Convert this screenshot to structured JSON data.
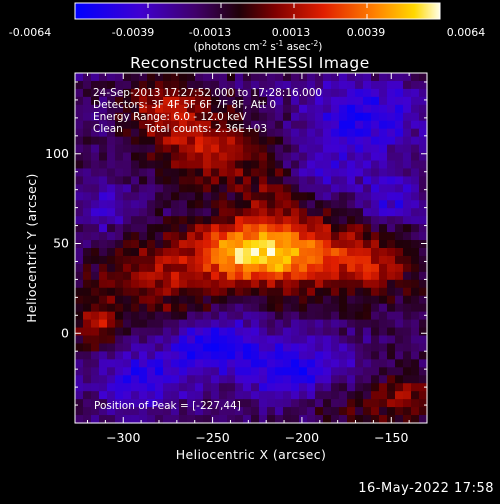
{
  "colorbar": {
    "ticks": [
      "-0.0064",
      "-0.0039",
      "-0.0013",
      "0.0013",
      "0.0039",
      "0.0064"
    ],
    "unit_label": "(photons cm",
    "unit_exp1": "-2",
    "unit_mid": " s",
    "unit_exp2": "-1",
    "unit_mid2": " asec",
    "unit_exp3": "-2",
    "unit_close": ")"
  },
  "title": "Reconstructed RHESSI Image",
  "info": {
    "line1": "24-Sep-2013 17:27:52.000 to 17:28:16.000",
    "line2": "Detectors: 3F 4F 5F 6F 7F 8F, Att 0",
    "line3": "Energy Range: 6.0 - 12.0 keV",
    "line4_a": "Clean",
    "line4_b": "Total counts: 2.36E+03"
  },
  "peak_label": "Position of Peak = [-227,44]",
  "footer": "16-May-2022 17:58",
  "chart_data": {
    "type": "heatmap",
    "title": "Reconstructed RHESSI Image",
    "xlabel": "Heliocentric X (arcsec)",
    "ylabel": "Heliocentric Y (arcsec)",
    "xlim": [
      -327,
      -130
    ],
    "ylim": [
      -50,
      145
    ],
    "xticks": [
      -300,
      -250,
      -200,
      -150
    ],
    "yticks": [
      0,
      50,
      100
    ],
    "xtick_labels": [
      "−300",
      "−250",
      "−200",
      "−150"
    ],
    "ytick_labels": [
      "0",
      "50",
      "100"
    ],
    "colorscale_range": [
      -0.0064,
      0.0064
    ],
    "colormap": [
      "#0000ff",
      "#5000c0",
      "#300040",
      "#000000",
      "#800000",
      "#e02000",
      "#ff7000",
      "#ffd000",
      "#ffffe0"
    ],
    "peak": {
      "x": -227,
      "y": 44
    },
    "sources": [
      {
        "x": -232,
        "y": 45,
        "amp": 0.0064,
        "sx": 22,
        "sy": 13
      },
      {
        "x": -198,
        "y": 44,
        "amp": 0.0038,
        "sx": 22,
        "sy": 14
      },
      {
        "x": -160,
        "y": 38,
        "amp": 0.003,
        "sx": 18,
        "sy": 14
      },
      {
        "x": -285,
        "y": 32,
        "amp": 0.003,
        "sx": 22,
        "sy": 15
      },
      {
        "x": -315,
        "y": 5,
        "amp": 0.0032,
        "sx": 8,
        "sy": 10
      },
      {
        "x": -255,
        "y": 105,
        "amp": 0.0036,
        "sx": 22,
        "sy": 16
      },
      {
        "x": -280,
        "y": 128,
        "amp": 0.003,
        "sx": 14,
        "sy": 10
      },
      {
        "x": -215,
        "y": 80,
        "amp": 0.002,
        "sx": 14,
        "sy": 14
      },
      {
        "x": -145,
        "y": -35,
        "amp": 0.003,
        "sx": 12,
        "sy": 10
      },
      {
        "x": -180,
        "y": -40,
        "amp": 0.0016,
        "sx": 14,
        "sy": 8
      },
      {
        "x": -260,
        "y": 5,
        "amp": 0.0012,
        "sx": 18,
        "sy": 10
      }
    ],
    "sinks": [
      {
        "x": -250,
        "y": -5,
        "amp": -0.0048,
        "sx": 16,
        "sy": 10
      },
      {
        "x": -290,
        "y": -25,
        "amp": -0.003,
        "sx": 18,
        "sy": 12
      },
      {
        "x": -205,
        "y": -20,
        "amp": -0.0034,
        "sx": 22,
        "sy": 12
      },
      {
        "x": -165,
        "y": 120,
        "amp": -0.0034,
        "sx": 24,
        "sy": 14
      },
      {
        "x": -190,
        "y": 90,
        "amp": -0.0022,
        "sx": 16,
        "sy": 10
      },
      {
        "x": -310,
        "y": 70,
        "amp": -0.002,
        "sx": 10,
        "sy": 10
      },
      {
        "x": -150,
        "y": 75,
        "amp": -0.0026,
        "sx": 12,
        "sy": 10
      }
    ]
  }
}
